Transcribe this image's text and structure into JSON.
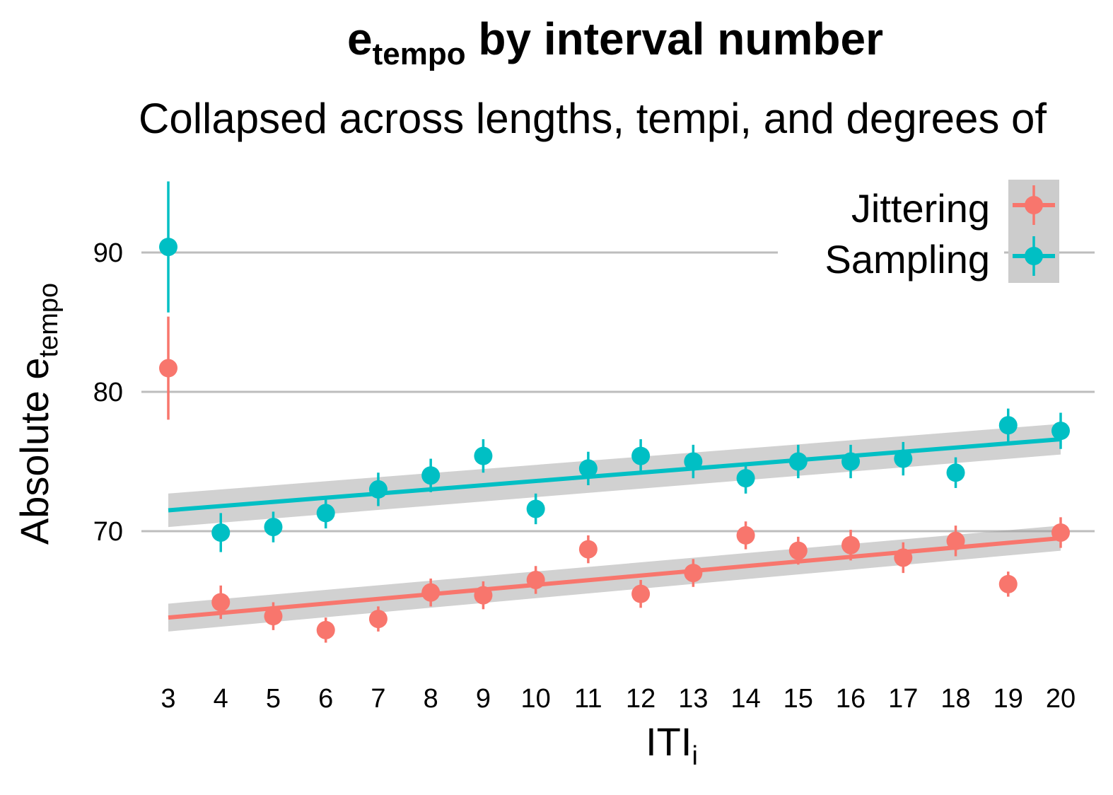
{
  "chart_data": {
    "type": "scatter",
    "title": {
      "main": "e",
      "sub": "tempo",
      "rest": " by interval number"
    },
    "subtitle": "Collapsed across lengths, tempi, and degrees of",
    "xlabel": {
      "main": "ITI",
      "sub": "i"
    },
    "ylabel": {
      "main": "Absolute e",
      "sub": "tempo"
    },
    "categories": [
      3,
      4,
      5,
      6,
      7,
      8,
      9,
      10,
      11,
      12,
      13,
      14,
      15,
      16,
      17,
      18,
      19,
      20
    ],
    "x_tick_labels": [
      "3",
      "4",
      "5",
      "6",
      "7",
      "8",
      "9",
      "10",
      "11",
      "12",
      "13",
      "14",
      "15",
      "16",
      "17",
      "18",
      "19",
      "20"
    ],
    "y_ticks": [
      70,
      80,
      90
    ],
    "y_tick_labels": [
      "70",
      "80",
      "90"
    ],
    "ylim": [
      60.5,
      95.5
    ],
    "grid": "horizontal-major",
    "legend_position": "top-right",
    "series": [
      {
        "name": "Jittering",
        "color": "#F8766D",
        "values": [
          81.7,
          64.9,
          63.9,
          62.9,
          63.7,
          65.6,
          65.4,
          66.5,
          68.7,
          65.5,
          67.0,
          69.7,
          68.6,
          69.0,
          68.1,
          69.3,
          66.2,
          69.9
        ],
        "error": [
          3.7,
          1.2,
          1.0,
          0.9,
          0.9,
          1.0,
          1.0,
          1.0,
          1.0,
          1.0,
          1.0,
          1.0,
          1.0,
          1.1,
          1.1,
          1.1,
          0.9,
          1.1
        ],
        "trend": {
          "x": [
            3,
            20
          ],
          "y": [
            63.8,
            69.5
          ],
          "band": [
            1.0,
            0.9
          ]
        }
      },
      {
        "name": "Sampling",
        "color": "#00BFC4",
        "values": [
          90.4,
          69.9,
          70.3,
          71.3,
          73.0,
          74.0,
          75.4,
          71.6,
          74.5,
          75.4,
          75.0,
          73.8,
          75.0,
          75.0,
          75.2,
          74.2,
          77.6,
          77.2
        ],
        "error": [
          4.7,
          1.4,
          1.1,
          1.1,
          1.2,
          1.2,
          1.2,
          1.1,
          1.2,
          1.2,
          1.2,
          1.1,
          1.2,
          1.2,
          1.2,
          1.1,
          1.2,
          1.3
        ],
        "trend": {
          "x": [
            3,
            20
          ],
          "y": [
            71.5,
            76.6
          ],
          "band": [
            1.2,
            1.1
          ]
        }
      }
    ]
  }
}
